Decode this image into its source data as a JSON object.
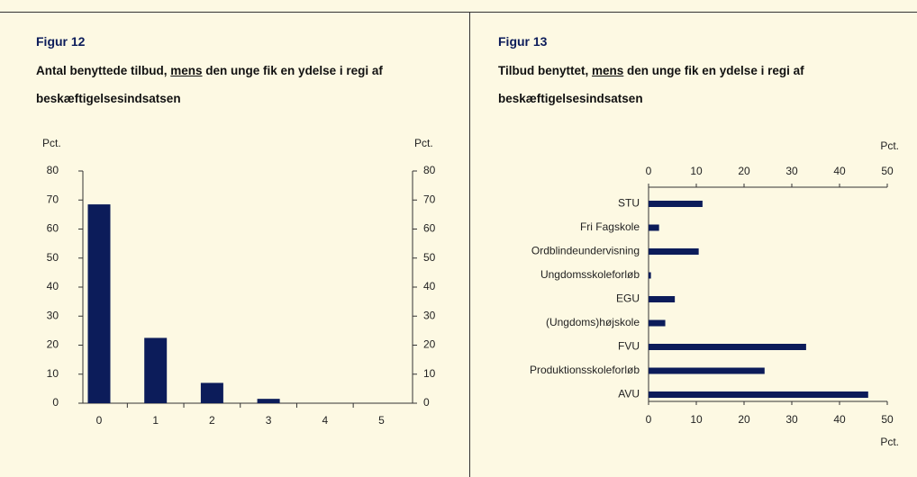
{
  "chart_data": [
    {
      "type": "bar",
      "figure": "Figur 12",
      "title": {
        "before": "Antal benyttede tilbud, ",
        "underlined": "mens",
        "after": " den unge fik en ydelse i regi af beskæftigelsesindsatsen"
      },
      "ylabel": "Pct.",
      "ylabel_right": "Pct.",
      "categories": [
        "0",
        "1",
        "2",
        "3",
        "4",
        "5"
      ],
      "values": [
        68.5,
        22.5,
        7,
        1.5,
        0,
        0
      ],
      "color": "#0c1c5a",
      "ylim": [
        0,
        80
      ],
      "yticks": [
        0,
        10,
        20,
        30,
        40,
        50,
        60,
        70,
        80
      ],
      "grid": false
    },
    {
      "type": "barh",
      "figure": "Figur 13",
      "title": {
        "before": "Tilbud benyttet, ",
        "underlined": "mens",
        "after": " den unge fik en ydelse i regi af beskæftigelsesindsatsen"
      },
      "xlabel_top": "Pct.",
      "xlabel": "Pct.",
      "categories": [
        "STU",
        "Fri Fagskole",
        "Ordblindeundervisning",
        "Ungdomsskoleforløb",
        "EGU",
        "(Ungdoms)højskole",
        "FVU",
        "Produktionsskoleforløb",
        "AVU"
      ],
      "values": [
        11.3,
        2.2,
        10.5,
        0.5,
        5.5,
        3.5,
        33,
        24.3,
        46
      ],
      "color": "#0c1c5a",
      "xlim": [
        0,
        50
      ],
      "xticks": [
        0,
        10,
        20,
        30,
        40,
        50
      ],
      "grid": false
    }
  ]
}
